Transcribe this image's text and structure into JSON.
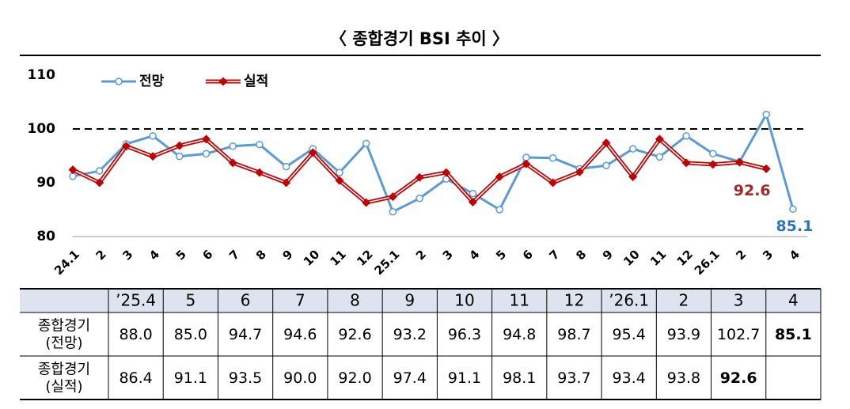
{
  "chart_data": {
    "type": "line",
    "title": "〈 종합경기 BSI 추이 〉",
    "categories": [
      "24.1",
      "2",
      "3",
      "4",
      "5",
      "6",
      "7",
      "8",
      "9",
      "10",
      "11",
      "12",
      "25.1",
      "2",
      "3",
      "4",
      "5",
      "6",
      "7",
      "8",
      "9",
      "10",
      "11",
      "12",
      "26.1",
      "2",
      "3",
      "4"
    ],
    "series": [
      {
        "name": "전망",
        "color": "#5b9bd5",
        "values": [
          91.2,
          92.2,
          97.2,
          98.7,
          94.9,
          95.4,
          96.8,
          97.1,
          93.0,
          96.3,
          91.9,
          97.3,
          84.6,
          87.1,
          90.7,
          88.0,
          85.0,
          94.7,
          94.6,
          92.6,
          93.2,
          96.3,
          94.8,
          98.7,
          95.4,
          93.9,
          102.7,
          85.1
        ]
      },
      {
        "name": "실적",
        "color": "#c00000",
        "values": [
          92.4,
          90.0,
          96.8,
          94.9,
          96.9,
          98.1,
          93.7,
          91.9,
          90.0,
          95.6,
          90.4,
          86.3,
          87.4,
          91.0,
          91.9,
          86.4,
          91.1,
          93.5,
          90.0,
          92.0,
          97.4,
          91.1,
          98.1,
          93.7,
          93.4,
          93.8,
          92.6,
          null
        ]
      }
    ],
    "ylim": [
      80,
      110
    ],
    "yticks": [
      80,
      90,
      100,
      110
    ],
    "reference_line": 100
  },
  "table": {
    "columns": [
      "’25.4",
      "5",
      "6",
      "7",
      "8",
      "9",
      "10",
      "11",
      "12",
      "’26.1",
      "2",
      "3",
      "4"
    ],
    "rows": [
      {
        "label": [
          "종합경기",
          "(전망)"
        ],
        "cells": [
          "88.0",
          "85.0",
          "94.7",
          "94.6",
          "92.6",
          "93.2",
          "96.3",
          "94.8",
          "98.7",
          "95.4",
          "93.9",
          "102.7",
          "85.1"
        ]
      },
      {
        "label": [
          "종합경기",
          "(실적)"
        ],
        "cells": [
          "86.4",
          "91.1",
          "93.5",
          "90.0",
          "92.0",
          "97.4",
          "91.1",
          "98.1",
          "93.7",
          "93.4",
          "93.8",
          "92.6"
        ]
      }
    ]
  }
}
